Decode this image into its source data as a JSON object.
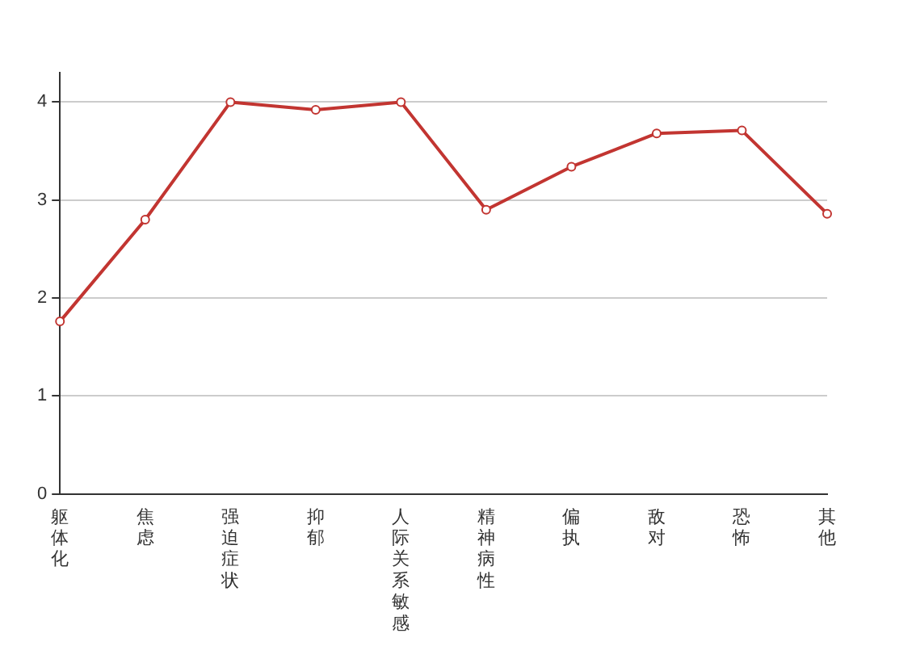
{
  "chart_data": {
    "type": "line",
    "categories": [
      "躯体化",
      "焦虑",
      "强迫症状",
      "抑郁",
      "人际关系敏感",
      "精神病性",
      "偏执",
      "敌对",
      "恐怖",
      "其他"
    ],
    "series": [
      {
        "color": "#c23531",
        "values": [
          1.76,
          2.8,
          4.0,
          3.92,
          4.0,
          2.9,
          3.34,
          3.68,
          3.71,
          2.86
        ]
      }
    ],
    "ylim": [
      0,
      4.3
    ],
    "yticks": [
      0,
      1,
      2,
      3,
      4
    ],
    "grid": "y",
    "marker": "circle",
    "legend": false
  }
}
